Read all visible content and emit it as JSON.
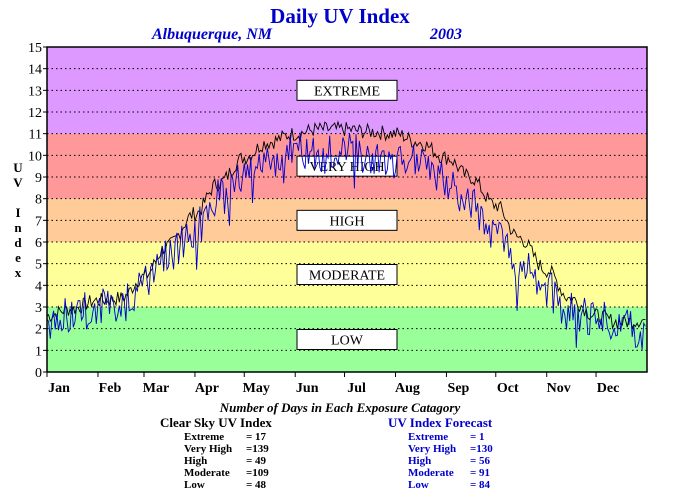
{
  "header": {
    "title": "Daily UV Index",
    "location": "Albuquerque, NM",
    "year": "2003"
  },
  "chart_data": {
    "type": "line",
    "title": "Daily UV Index",
    "ylabel": "UV Index",
    "ylim": [
      0,
      15
    ],
    "yticks": [
      "0",
      "1",
      "2",
      "3",
      "4",
      "5",
      "6",
      "7",
      "8",
      "9",
      "10",
      "11",
      "12",
      "13",
      "14",
      "15"
    ],
    "xticks": [
      "Jan",
      "Feb",
      "Mar",
      "Apr",
      "May",
      "Jun",
      "Jul",
      "Aug",
      "Sep",
      "Oct",
      "Nov",
      "Dec"
    ],
    "grid": true,
    "bands": [
      {
        "label": "LOW",
        "from": 0,
        "to": 3,
        "color": "#99ff99"
      },
      {
        "label": "MODERATE",
        "from": 3,
        "to": 6,
        "color": "#ffff99"
      },
      {
        "label": "HIGH",
        "from": 6,
        "to": 8,
        "color": "#ffcc99"
      },
      {
        "label": "VERY HIGH",
        "from": 8,
        "to": 11,
        "color": "#ff9999"
      },
      {
        "label": "EXTREME",
        "from": 11,
        "to": 15,
        "color": "#dd99ff"
      }
    ],
    "series": [
      {
        "name": "Clear Sky UV Index",
        "color": "#000000",
        "x": [
          "Jan 1",
          "Jan 15",
          "Feb 1",
          "Feb 15",
          "Mar 1",
          "Mar 15",
          "Apr 1",
          "Apr 15",
          "May 1",
          "May 15",
          "Jun 1",
          "Jun 15",
          "Jul 1",
          "Jul 15",
          "Aug 1",
          "Aug 15",
          "Sep 1",
          "Sep 15",
          "Oct 1",
          "Oct 15",
          "Nov 1",
          "Nov 15",
          "Dec 1",
          "Dec 15",
          "Dec 31"
        ],
        "values": [
          2.6,
          2.9,
          3.3,
          3.4,
          4.4,
          5.8,
          7.3,
          8.7,
          9.9,
          10.6,
          11.0,
          11.2,
          11.2,
          11.1,
          11.0,
          10.6,
          9.9,
          9.0,
          7.7,
          6.2,
          4.7,
          3.4,
          2.6,
          2.3,
          2.4
        ]
      },
      {
        "name": "UV Index Forecast",
        "color": "#0000cc",
        "x": [
          "Jan 1",
          "Jan 15",
          "Feb 1",
          "Feb 15",
          "Mar 1",
          "Mar 15",
          "Apr 1",
          "Apr 15",
          "May 1",
          "May 15",
          "Jun 1",
          "Jun 15",
          "Jul 1",
          "Jul 15",
          "Aug 1",
          "Aug 15",
          "Sep 1",
          "Sep 15",
          "Oct 1",
          "Oct 15",
          "Nov 1",
          "Nov 15",
          "Dec 1",
          "Dec 15",
          "Dec 31"
        ],
        "values": [
          2.4,
          2.6,
          3.0,
          3.1,
          4.0,
          5.2,
          6.6,
          8.0,
          9.2,
          9.8,
          10.2,
          9.9,
          10.4,
          9.8,
          9.6,
          9.9,
          8.8,
          7.9,
          6.4,
          5.0,
          3.8,
          2.8,
          2.5,
          2.1,
          2.0
        ]
      }
    ]
  },
  "counts": {
    "title": "Number of Days in Each Exposure Catagory",
    "clear_sky": {
      "heading": "Clear Sky UV Index",
      "rows": [
        {
          "label": "Extreme",
          "value": "= 17"
        },
        {
          "label": "Very High",
          "value": "=139"
        },
        {
          "label": "High",
          "value": "= 49"
        },
        {
          "label": "Moderate",
          "value": "=109"
        },
        {
          "label": "Low",
          "value": "= 48"
        }
      ]
    },
    "forecast": {
      "heading": "UV Index Forecast",
      "rows": [
        {
          "label": "Extreme",
          "value": "= 1"
        },
        {
          "label": "Very High",
          "value": "=130"
        },
        {
          "label": "High",
          "value": "= 56"
        },
        {
          "label": "Moderate",
          "value": "= 91"
        },
        {
          "label": "Low",
          "value": "= 84"
        }
      ]
    }
  }
}
